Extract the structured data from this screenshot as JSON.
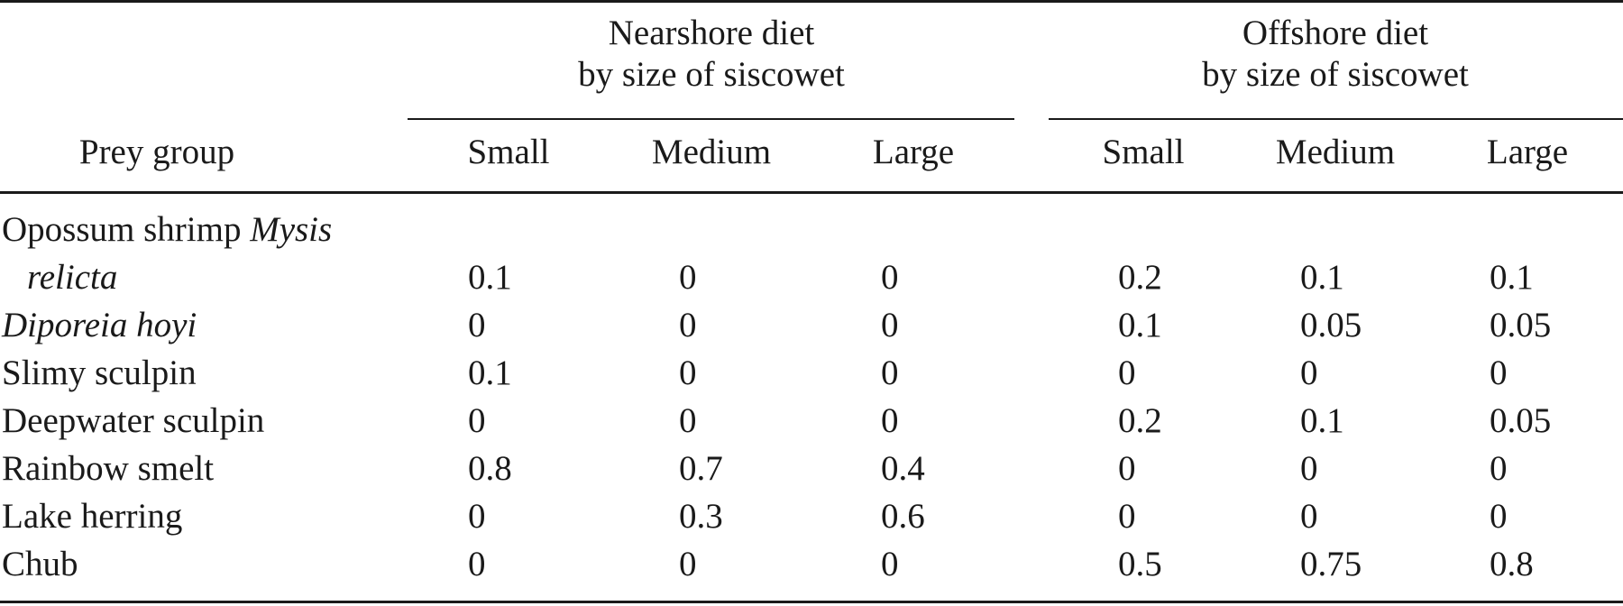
{
  "table": {
    "groups": [
      {
        "line1": "Nearshore diet",
        "line2": "by size of siscowet"
      },
      {
        "line1": "Offshore diet",
        "line2": "by size of siscowet"
      }
    ],
    "stub_header": "Prey group",
    "columns": [
      "Small",
      "Medium",
      "Large",
      "Small",
      "Medium",
      "Large"
    ],
    "rows": [
      {
        "label_plain": "Opossum shrimp ",
        "label_italic": "Mysis",
        "label_line2_italic": "relicta",
        "values": [
          "0.1",
          "0",
          "0",
          "0.2",
          "0.1",
          "0.1"
        ]
      },
      {
        "label_plain": "",
        "label_italic": "Diporeia hoyi",
        "label_line2_italic": "",
        "values": [
          "0",
          "0",
          "0",
          "0.1",
          "0.05",
          "0.05"
        ]
      },
      {
        "label_plain": "Slimy sculpin",
        "label_italic": "",
        "label_line2_italic": "",
        "values": [
          "0.1",
          "0",
          "0",
          "0",
          "0",
          "0"
        ]
      },
      {
        "label_plain": "Deepwater sculpin",
        "label_italic": "",
        "label_line2_italic": "",
        "values": [
          "0",
          "0",
          "0",
          "0.2",
          "0.1",
          "0.05"
        ]
      },
      {
        "label_plain": "Rainbow smelt",
        "label_italic": "",
        "label_line2_italic": "",
        "values": [
          "0.8",
          "0.7",
          "0.4",
          "0",
          "0",
          "0"
        ]
      },
      {
        "label_plain": "Lake herring",
        "label_italic": "",
        "label_line2_italic": "",
        "values": [
          "0",
          "0.3",
          "0.6",
          "0",
          "0",
          "0"
        ]
      },
      {
        "label_plain": "Chub",
        "label_italic": "",
        "label_line2_italic": "",
        "values": [
          "0",
          "0",
          "0",
          "0.5",
          "0.75",
          "0.8"
        ]
      }
    ]
  }
}
